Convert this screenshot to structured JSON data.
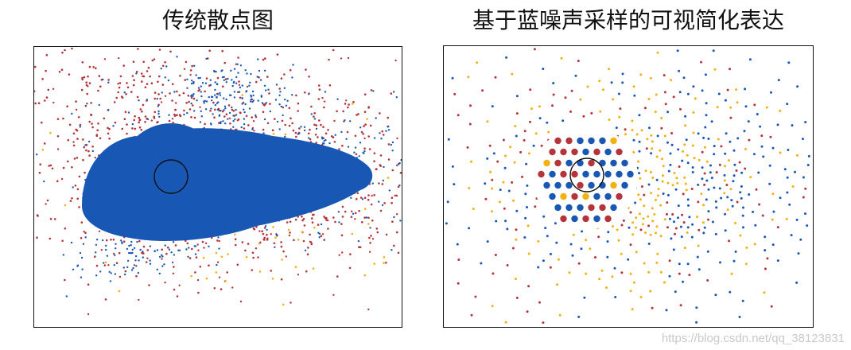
{
  "panels": {
    "left": {
      "title": "传统散点图"
    },
    "right": {
      "title": "基于蓝噪声采样的可视简化表达"
    }
  },
  "colors": {
    "red": "#b5343c",
    "blue": "#1957b5",
    "yellow": "#f2b10f"
  },
  "watermark": "https://blog.csdn.net/qq_38123831",
  "chart_data": [
    {
      "type": "scatter",
      "title": "传统散点图",
      "series": [
        {
          "color": "#b5343c"
        },
        {
          "color": "#1957b5"
        },
        {
          "color": "#f2b10f"
        }
      ],
      "markers": [
        "circle-outline"
      ]
    },
    {
      "type": "scatter",
      "title": "基于蓝噪声采样的可视简化表达",
      "series": [
        {
          "color": "#b5343c"
        },
        {
          "color": "#1957b5"
        },
        {
          "color": "#f2b10f"
        }
      ],
      "markers": [
        "circle-outline",
        "magnifier-lens"
      ]
    }
  ]
}
